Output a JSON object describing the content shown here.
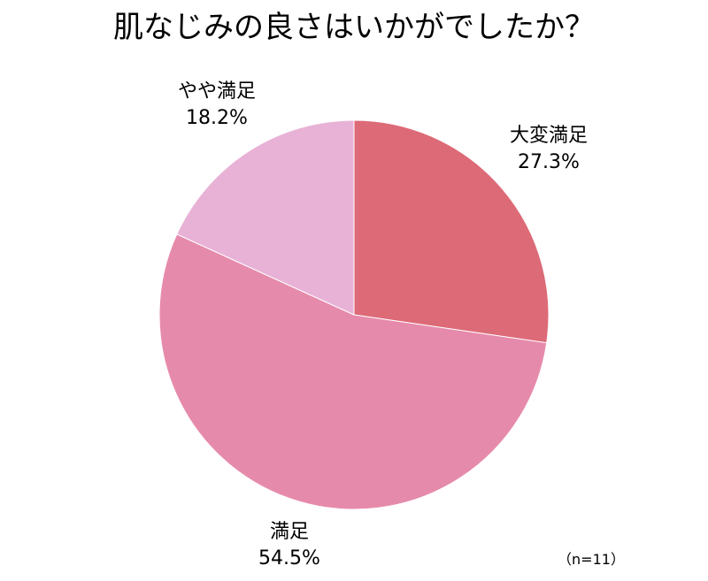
{
  "chart_data": {
    "type": "pie",
    "title": "肌なじみの良さはいかがでしたか？",
    "note": "（n=11）",
    "slices": [
      {
        "label": "大変満足",
        "value": 27.3,
        "value_label": "27.3%",
        "color": "#dd6a77"
      },
      {
        "label": "満足",
        "value": 54.5,
        "value_label": "54.5%",
        "color": "#e68aab"
      },
      {
        "label": "やや満足",
        "value": 18.2,
        "value_label": "18.2%",
        "color": "#e8b2d6"
      }
    ],
    "start_angle": "12 o'clock",
    "direction": "clockwise",
    "legend": "none"
  }
}
